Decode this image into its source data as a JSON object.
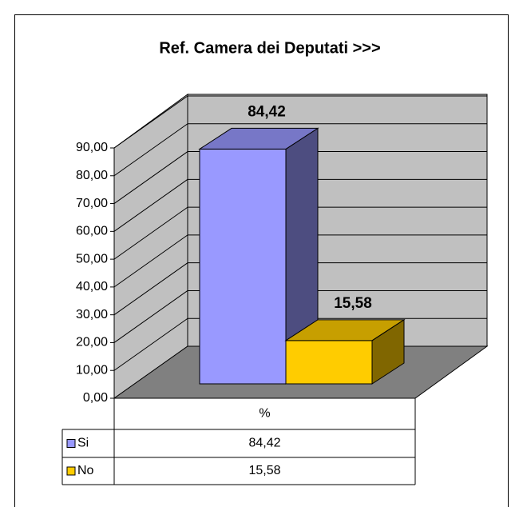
{
  "chart_data": {
    "type": "bar3d",
    "title": "Ref. Camera dei Deputati >>>",
    "categories": [
      "%"
    ],
    "series": [
      {
        "name": "Si",
        "color": "#9999ff",
        "values": [
          84.42
        ],
        "value_labels": [
          "84,42"
        ]
      },
      {
        "name": "No",
        "color": "#ffcc00",
        "values": [
          15.58
        ],
        "value_labels": [
          "15,58"
        ]
      }
    ],
    "ylim": [
      0,
      90
    ],
    "yticks": [
      {
        "value": 0,
        "label": "0,00"
      },
      {
        "value": 10,
        "label": "10,00"
      },
      {
        "value": 20,
        "label": "20,00"
      },
      {
        "value": 30,
        "label": "30,00"
      },
      {
        "value": 40,
        "label": "40,00"
      },
      {
        "value": 50,
        "label": "50,00"
      },
      {
        "value": 60,
        "label": "60,00"
      },
      {
        "value": 70,
        "label": "70,00"
      },
      {
        "value": 80,
        "label": "80,00"
      },
      {
        "value": 90,
        "label": "90,00"
      }
    ],
    "grid": true,
    "data_table": true
  }
}
